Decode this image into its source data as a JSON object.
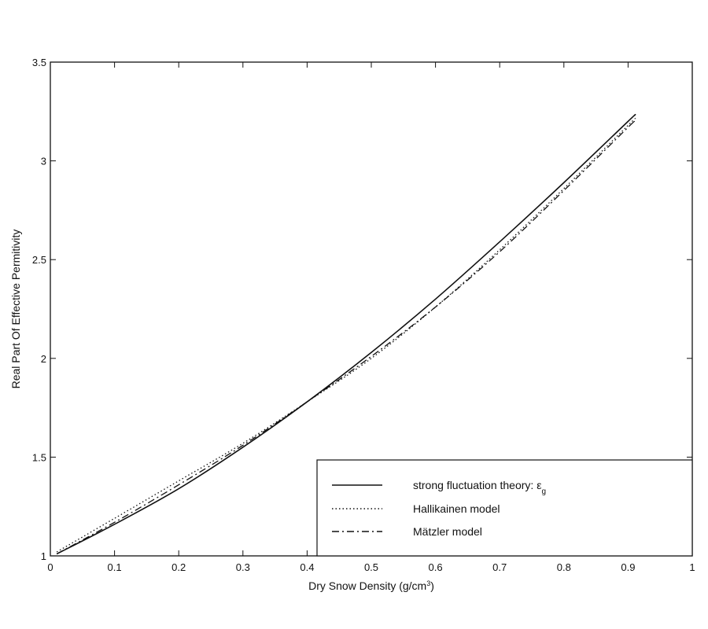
{
  "chart_data": {
    "type": "line",
    "title": "",
    "xlabel": "Dry Snow Density (g/cm",
    "xlabel_sup": "3",
    "xlabel_tail": ")",
    "ylabel": "Real Part Of Effective Permitivity",
    "xlim": [
      0,
      1
    ],
    "ylim": [
      1,
      3.5
    ],
    "xticks": [
      0,
      0.1,
      0.2,
      0.3,
      0.4,
      0.5,
      0.6,
      0.7,
      0.8,
      0.9,
      1
    ],
    "xtick_labels": [
      "0",
      "0.1",
      "0.2",
      "0.3",
      "0.4",
      "0.5",
      "0.6",
      "0.7",
      "0.8",
      "0.9",
      "1"
    ],
    "yticks": [
      1,
      1.5,
      2,
      2.5,
      3,
      3.5
    ],
    "ytick_labels": [
      "1",
      "1.5",
      "2",
      "2.5",
      "3",
      "3.5"
    ],
    "grid": false,
    "legend_position": "lower right",
    "x": [
      0.01,
      0.1,
      0.2,
      0.3,
      0.4,
      0.5,
      0.6,
      0.7,
      0.8,
      0.9,
      0.91
    ],
    "series": [
      {
        "name": "strong fluctuation theory: ε_g",
        "legend_label": "strong fluctuation theory: ε",
        "legend_sub": "g",
        "style": "solid",
        "values": [
          1.01,
          1.16,
          1.34,
          1.55,
          1.78,
          2.03,
          2.3,
          2.59,
          2.89,
          3.2,
          3.23
        ]
      },
      {
        "name": "Hallikainen model",
        "legend_label": "Hallikainen model",
        "style": "dotted",
        "values": [
          1.02,
          1.19,
          1.38,
          1.57,
          1.78,
          2.0,
          2.26,
          2.55,
          2.86,
          3.18,
          3.21
        ]
      },
      {
        "name": "Mätzler model",
        "legend_label": "Mätzler model",
        "style": "dashdot",
        "values": [
          1.01,
          1.17,
          1.36,
          1.56,
          1.78,
          2.01,
          2.26,
          2.54,
          2.85,
          3.17,
          3.2
        ]
      }
    ]
  },
  "colors": {
    "background": "#ffffff",
    "ink": "#111111"
  }
}
